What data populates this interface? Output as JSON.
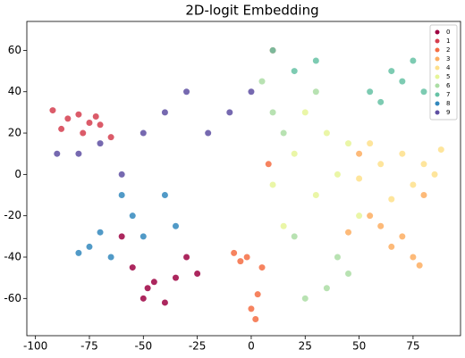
{
  "chart_data": {
    "type": "scatter",
    "title": "2D-logit Embedding",
    "xlim": [
      -104,
      97
    ],
    "ylim": [
      -78,
      74
    ],
    "xticks": [
      -100,
      -75,
      -50,
      -25,
      0,
      25,
      50,
      75
    ],
    "yticks": [
      -60,
      -40,
      -20,
      0,
      20,
      40,
      60
    ],
    "grid": false,
    "legend": "upper right",
    "series": [
      {
        "name": "0",
        "color": "#9e0142",
        "x": [
          -50,
          -45,
          -55,
          -40,
          -35,
          -60,
          -48,
          -30,
          -25
        ],
        "y": [
          -60,
          -52,
          -45,
          -62,
          -50,
          -30,
          -55,
          -40,
          -48
        ]
      },
      {
        "name": "1",
        "color": "#d53e4f",
        "x": [
          -92,
          -85,
          -80,
          -75,
          -70,
          -88,
          -78,
          -65,
          -72
        ],
        "y": [
          31,
          27,
          29,
          25,
          24,
          22,
          20,
          18,
          28
        ]
      },
      {
        "name": "2",
        "color": "#f46d43",
        "x": [
          0,
          -5,
          5,
          2,
          -2,
          -8,
          3,
          10,
          8
        ],
        "y": [
          -65,
          -42,
          -45,
          -70,
          -40,
          -38,
          -58,
          60,
          5
        ]
      },
      {
        "name": "3",
        "color": "#fdae61",
        "x": [
          70,
          75,
          60,
          80,
          65,
          55,
          50,
          78,
          45
        ],
        "y": [
          -30,
          -40,
          -25,
          -10,
          -35,
          -20,
          10,
          -44,
          -28
        ]
      },
      {
        "name": "4",
        "color": "#fee08b",
        "x": [
          80,
          70,
          85,
          60,
          75,
          88,
          65,
          55,
          50
        ],
        "y": [
          5,
          10,
          0,
          5,
          -5,
          12,
          -12,
          15,
          -2
        ]
      },
      {
        "name": "5",
        "color": "#e6f598",
        "x": [
          40,
          30,
          20,
          50,
          35,
          10,
          25,
          45,
          15
        ],
        "y": [
          0,
          -10,
          10,
          -20,
          20,
          -5,
          30,
          15,
          -25
        ]
      },
      {
        "name": "6",
        "color": "#abdda4",
        "x": [
          35,
          40,
          10,
          30,
          20,
          25,
          45,
          15,
          5
        ],
        "y": [
          -55,
          -40,
          30,
          40,
          -30,
          -60,
          -48,
          20,
          45
        ]
      },
      {
        "name": "7",
        "color": "#66c2a5",
        "x": [
          65,
          75,
          55,
          70,
          20,
          80,
          60,
          30,
          10
        ],
        "y": [
          50,
          55,
          40,
          45,
          50,
          40,
          35,
          55,
          60
        ]
      },
      {
        "name": "8",
        "color": "#3288bd",
        "x": [
          -75,
          -65,
          -55,
          -40,
          -50,
          -80,
          -60,
          -35,
          -70
        ],
        "y": [
          -35,
          -40,
          -20,
          -10,
          -30,
          -38,
          -10,
          -25,
          -28
        ]
      },
      {
        "name": "9",
        "color": "#5e4fa2",
        "x": [
          -80,
          -70,
          -60,
          -90,
          -40,
          -30,
          -20,
          -10,
          0,
          -50
        ],
        "y": [
          10,
          15,
          0,
          10,
          30,
          40,
          20,
          30,
          40,
          20
        ]
      }
    ]
  }
}
